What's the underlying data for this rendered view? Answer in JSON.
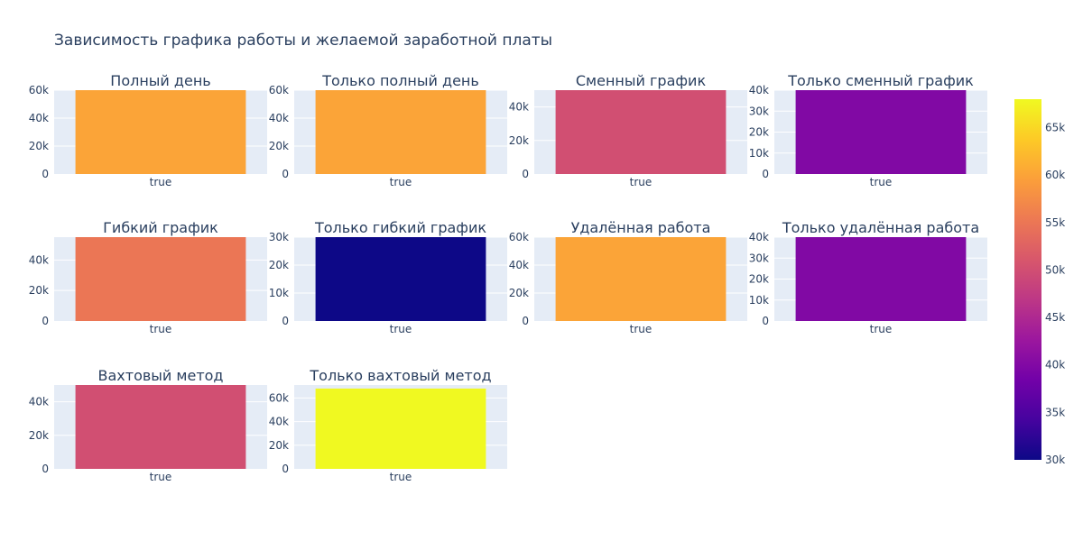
{
  "title": "Зависимость графика работы и желаемой заработной платы",
  "colors": {
    "plot_bg": "#E5ECF6",
    "grid": "#ffffff",
    "text": "#2a3f5f",
    "colorscale": [
      "#0d0887",
      "#46039f",
      "#7201a8",
      "#9c179e",
      "#bd3786",
      "#d8576b",
      "#ed7953",
      "#fb9f3a",
      "#fdca26",
      "#f0f921"
    ]
  },
  "colorbar": {
    "range": [
      30000,
      68000
    ],
    "ticks": [
      {
        "value": 30000,
        "label": "30k"
      },
      {
        "value": 35000,
        "label": "35k"
      },
      {
        "value": 40000,
        "label": "40k"
      },
      {
        "value": 45000,
        "label": "45k"
      },
      {
        "value": 50000,
        "label": "50k"
      },
      {
        "value": 55000,
        "label": "55k"
      },
      {
        "value": 60000,
        "label": "60k"
      },
      {
        "value": 65000,
        "label": "65k"
      }
    ]
  },
  "chart_data": [
    {
      "type": "bar",
      "title": "Полный день",
      "categories": [
        "true"
      ],
      "values": [
        60000
      ],
      "ylim": [
        0,
        60000
      ],
      "yticks": [
        {
          "value": 0,
          "label": "0"
        },
        {
          "value": 20000,
          "label": "20k"
        },
        {
          "value": 40000,
          "label": "40k"
        },
        {
          "value": 60000,
          "label": "60k"
        }
      ]
    },
    {
      "type": "bar",
      "title": "Только полный день",
      "categories": [
        "true"
      ],
      "values": [
        60000
      ],
      "ylim": [
        0,
        60000
      ],
      "yticks": [
        {
          "value": 0,
          "label": "0"
        },
        {
          "value": 20000,
          "label": "20k"
        },
        {
          "value": 40000,
          "label": "40k"
        },
        {
          "value": 60000,
          "label": "60k"
        }
      ]
    },
    {
      "type": "bar",
      "title": "Сменный график",
      "categories": [
        "true"
      ],
      "values": [
        50000
      ],
      "ylim": [
        0,
        50000
      ],
      "yticks": [
        {
          "value": 0,
          "label": "0"
        },
        {
          "value": 20000,
          "label": "20k"
        },
        {
          "value": 40000,
          "label": "40k"
        }
      ]
    },
    {
      "type": "bar",
      "title": "Только сменный график",
      "categories": [
        "true"
      ],
      "values": [
        40000
      ],
      "ylim": [
        0,
        40000
      ],
      "yticks": [
        {
          "value": 0,
          "label": "0"
        },
        {
          "value": 10000,
          "label": "10k"
        },
        {
          "value": 20000,
          "label": "20k"
        },
        {
          "value": 30000,
          "label": "30k"
        },
        {
          "value": 40000,
          "label": "40k"
        }
      ]
    },
    {
      "type": "bar",
      "title": "Гибкий график",
      "categories": [
        "true"
      ],
      "values": [
        55000
      ],
      "ylim": [
        0,
        55000
      ],
      "yticks": [
        {
          "value": 0,
          "label": "0"
        },
        {
          "value": 20000,
          "label": "20k"
        },
        {
          "value": 40000,
          "label": "40k"
        }
      ]
    },
    {
      "type": "bar",
      "title": "Только гибкий график",
      "categories": [
        "true"
      ],
      "values": [
        30000
      ],
      "ylim": [
        0,
        30000
      ],
      "yticks": [
        {
          "value": 0,
          "label": "0"
        },
        {
          "value": 10000,
          "label": "10k"
        },
        {
          "value": 20000,
          "label": "20k"
        },
        {
          "value": 30000,
          "label": "30k"
        }
      ]
    },
    {
      "type": "bar",
      "title": "Удалённая работа",
      "categories": [
        "true"
      ],
      "values": [
        60000
      ],
      "ylim": [
        0,
        60000
      ],
      "yticks": [
        {
          "value": 0,
          "label": "0"
        },
        {
          "value": 20000,
          "label": "20k"
        },
        {
          "value": 40000,
          "label": "40k"
        },
        {
          "value": 60000,
          "label": "60k"
        }
      ]
    },
    {
      "type": "bar",
      "title": "Только удалённая работа",
      "categories": [
        "true"
      ],
      "values": [
        40000
      ],
      "ylim": [
        0,
        40000
      ],
      "yticks": [
        {
          "value": 0,
          "label": "0"
        },
        {
          "value": 10000,
          "label": "10k"
        },
        {
          "value": 20000,
          "label": "20k"
        },
        {
          "value": 30000,
          "label": "30k"
        },
        {
          "value": 40000,
          "label": "40k"
        }
      ]
    },
    {
      "type": "bar",
      "title": "Вахтовый метод",
      "categories": [
        "true"
      ],
      "values": [
        50000
      ],
      "ylim": [
        0,
        50000
      ],
      "yticks": [
        {
          "value": 0,
          "label": "0"
        },
        {
          "value": 20000,
          "label": "20k"
        },
        {
          "value": 40000,
          "label": "40k"
        }
      ]
    },
    {
      "type": "bar",
      "title": "Только вахтовый метод",
      "categories": [
        "true"
      ],
      "values": [
        68000
      ],
      "ylim": [
        0,
        71000
      ],
      "yticks": [
        {
          "value": 0,
          "label": "0"
        },
        {
          "value": 20000,
          "label": "20k"
        },
        {
          "value": 40000,
          "label": "40k"
        },
        {
          "value": 60000,
          "label": "60k"
        }
      ]
    }
  ]
}
